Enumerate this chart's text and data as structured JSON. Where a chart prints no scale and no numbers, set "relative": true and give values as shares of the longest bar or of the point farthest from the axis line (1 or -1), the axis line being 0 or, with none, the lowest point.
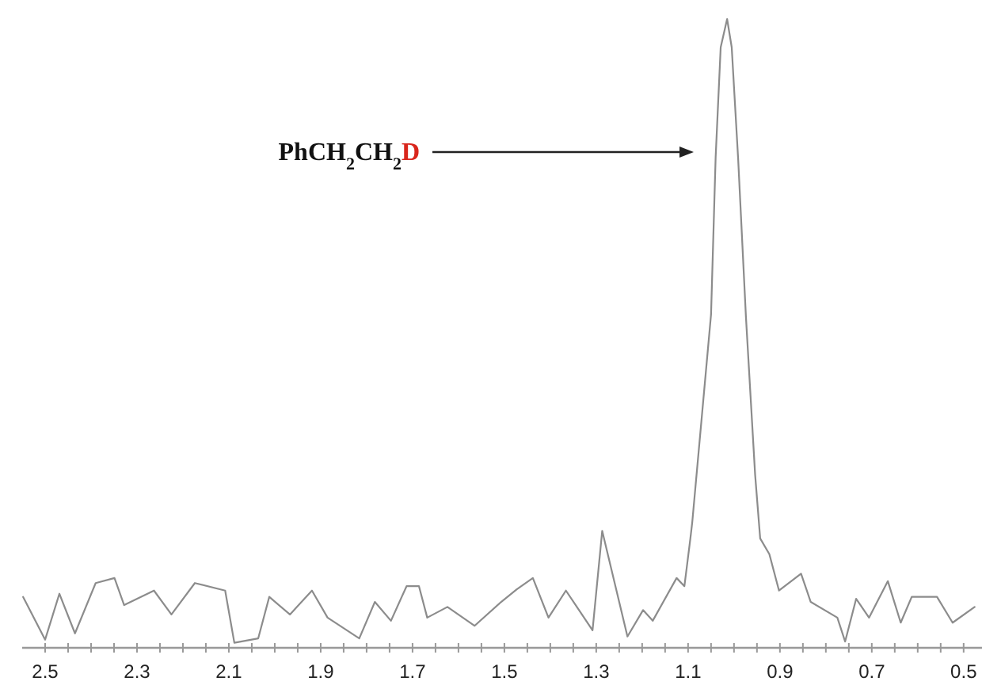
{
  "chart_data": {
    "type": "line",
    "relative": true,
    "xlim": [
      2.55,
      0.46
    ],
    "xticks": [
      2.5,
      {
        "value": 2.45,
        "label": null
      },
      {
        "value": 2.4,
        "label": null
      },
      {
        "value": 2.35,
        "label": null
      },
      2.3,
      {
        "value": 2.25,
        "label": null
      },
      {
        "value": 2.2,
        "label": null
      },
      {
        "value": 2.15,
        "label": null
      },
      2.1,
      {
        "value": 2.05,
        "label": null
      },
      {
        "value": 2.0,
        "label": null
      },
      {
        "value": 1.95,
        "label": null
      },
      1.9,
      {
        "value": 1.85,
        "label": null
      },
      {
        "value": 1.8,
        "label": null
      },
      {
        "value": 1.75,
        "label": null
      },
      1.7,
      {
        "value": 1.65,
        "label": null
      },
      {
        "value": 1.6,
        "label": null
      },
      {
        "value": 1.55,
        "label": null
      },
      1.5,
      {
        "value": 1.45,
        "label": null
      },
      {
        "value": 1.4,
        "label": null
      },
      {
        "value": 1.35,
        "label": null
      },
      1.3,
      {
        "value": 1.25,
        "label": null
      },
      {
        "value": 1.2,
        "label": null
      },
      {
        "value": 1.15,
        "label": null
      },
      1.1,
      {
        "value": 1.05,
        "label": null
      },
      {
        "value": 1.0,
        "label": null
      },
      {
        "value": 0.95,
        "label": null
      },
      0.9,
      {
        "value": 0.85,
        "label": null
      },
      {
        "value": 0.8,
        "label": null
      },
      {
        "value": 0.75,
        "label": null
      },
      0.7,
      {
        "value": 0.65,
        "label": null
      },
      {
        "value": 0.6,
        "label": null
      },
      {
        "value": 0.55,
        "label": null
      },
      0.5
    ],
    "x": [
      2.548,
      2.5,
      2.469,
      2.435,
      2.39,
      2.349,
      2.328,
      2.263,
      2.225,
      2.174,
      2.108,
      2.088,
      2.036,
      2.012,
      1.967,
      1.919,
      1.885,
      1.816,
      1.782,
      1.747,
      1.713,
      1.686,
      1.668,
      1.624,
      1.565,
      1.507,
      1.473,
      1.438,
      1.404,
      1.366,
      1.308,
      1.287,
      1.232,
      1.198,
      1.177,
      1.125,
      1.108,
      1.095,
      1.091,
      1.05,
      1.04,
      1.029,
      1.015,
      1.005,
      0.991,
      0.974,
      0.954,
      0.943,
      0.923,
      0.902,
      0.854,
      0.833,
      0.775,
      0.758,
      0.734,
      0.706,
      0.665,
      0.637,
      0.613,
      0.558,
      0.524,
      0.476
    ],
    "series": [
      {
        "color": "#8c8c8c",
        "values": [
          0.081,
          0.013,
          0.086,
          0.023,
          0.103,
          0.111,
          0.068,
          0.091,
          0.053,
          0.103,
          0.091,
          0.008,
          0.015,
          0.081,
          0.053,
          0.091,
          0.048,
          0.015,
          0.073,
          0.043,
          0.098,
          0.098,
          0.048,
          0.065,
          0.035,
          0.073,
          0.093,
          0.111,
          0.048,
          0.091,
          0.028,
          0.186,
          0.018,
          0.06,
          0.043,
          0.111,
          0.098,
          0.174,
          0.199,
          0.53,
          0.78,
          0.955,
          1,
          0.955,
          0.778,
          0.526,
          0.275,
          0.174,
          0.149,
          0.091,
          0.118,
          0.073,
          0.048,
          0.01,
          0.078,
          0.048,
          0.106,
          0.04,
          0.081,
          0.081,
          0.04,
          0.065
        ]
      }
    ],
    "marker": "none",
    "line_style": "solid",
    "annotations": [
      "PhCH$_{2}$CH$_{2}$D"
    ]
  }
}
